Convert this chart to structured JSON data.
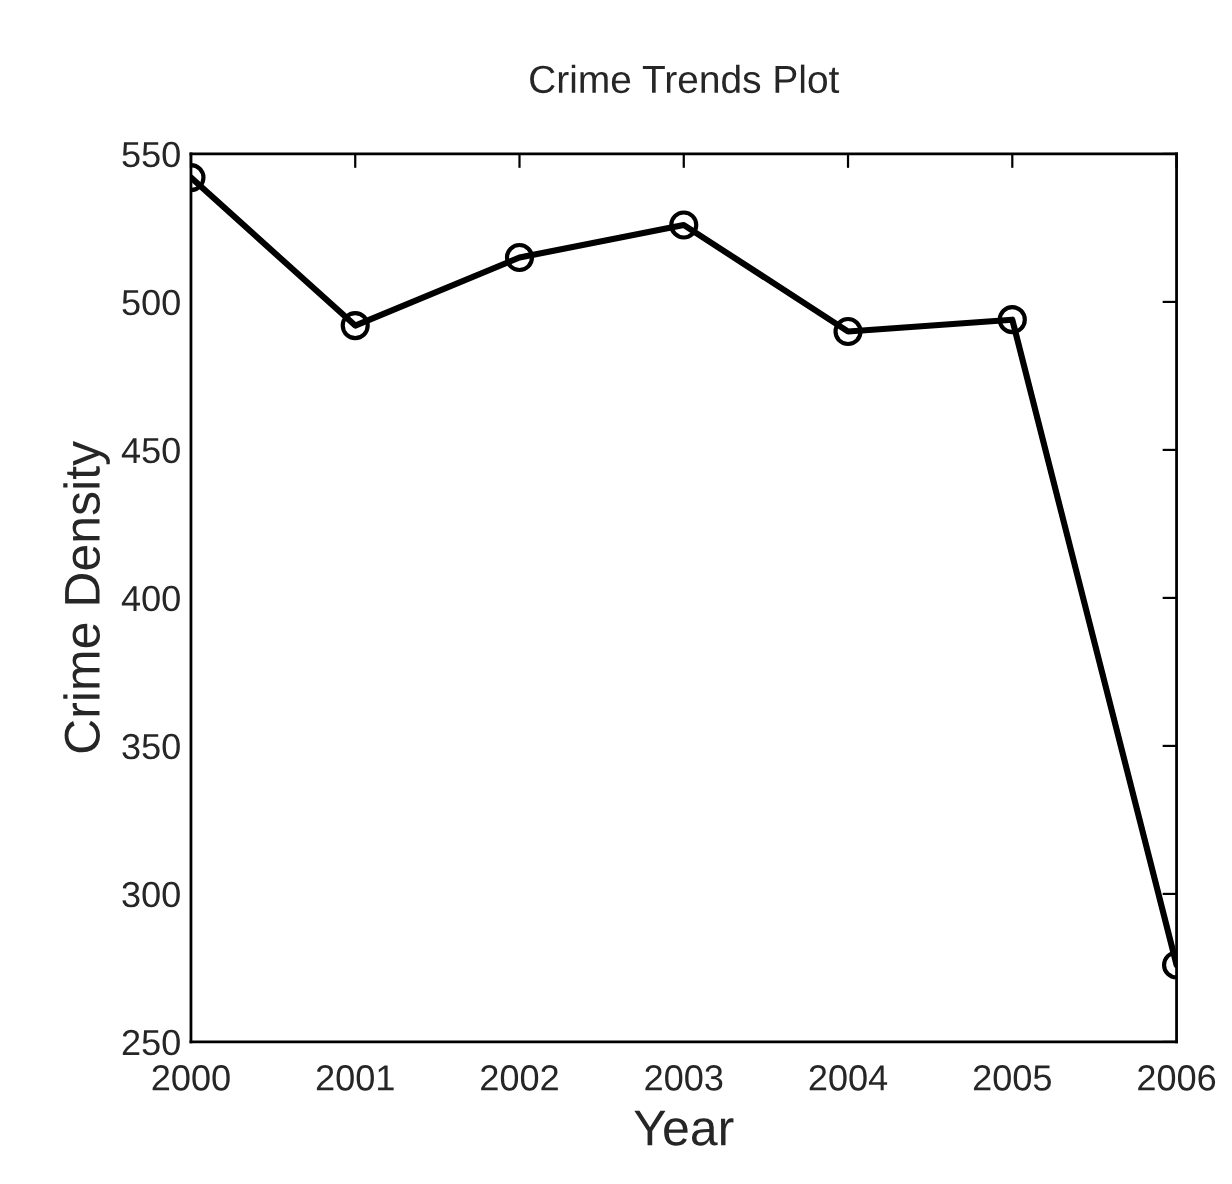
{
  "chart_data": {
    "type": "line",
    "title": "Crime Trends Plot",
    "xlabel": "Year",
    "ylabel": "Crime Density",
    "x": [
      2000,
      2001,
      2002,
      2003,
      2004,
      2005,
      2006
    ],
    "series": [
      {
        "color": "#000000",
        "values": [
          542,
          492,
          515,
          526,
          490,
          494,
          276
        ]
      }
    ],
    "xlim": [
      2000,
      2006
    ],
    "xticks": [
      2000,
      2001,
      2002,
      2003,
      2004,
      2005,
      2006
    ],
    "ylim": [
      250,
      550
    ],
    "yticks": [
      250,
      300,
      350,
      400,
      450,
      500,
      550
    ],
    "grid": false,
    "marker": "circle",
    "line_style": "solid"
  }
}
